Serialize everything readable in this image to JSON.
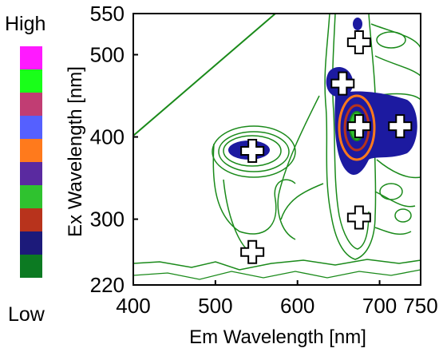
{
  "chart_data": {
    "type": "heatmap",
    "xlabel": "Em Wavelength [nm]",
    "ylabel": "Ex Wavelength [nm]",
    "xlim": [
      400,
      750
    ],
    "ylim": [
      220,
      550
    ],
    "xticks": [
      400,
      500,
      600,
      700,
      750
    ],
    "yticks": [
      220,
      300,
      400,
      500,
      550
    ],
    "colorbar": {
      "high_label": "High",
      "low_label": "Low",
      "colors": [
        "#ff1aff",
        "#19ff19",
        "#c13d73",
        "#5560ff",
        "#ff7a1c",
        "#5a2aa0",
        "#2fc22f",
        "#b8331c",
        "#1c1a7a",
        "#0c7a22"
      ]
    },
    "peaks": [
      {
        "em": 545,
        "ex": 383
      },
      {
        "em": 545,
        "ex": 260
      },
      {
        "em": 655,
        "ex": 465
      },
      {
        "em": 675,
        "ex": 515
      },
      {
        "em": 675,
        "ex": 413
      },
      {
        "em": 725,
        "ex": 413
      },
      {
        "em": 675,
        "ex": 302
      }
    ],
    "line_color": "#1a7a1a",
    "fill_color": "#1c1aa0"
  }
}
